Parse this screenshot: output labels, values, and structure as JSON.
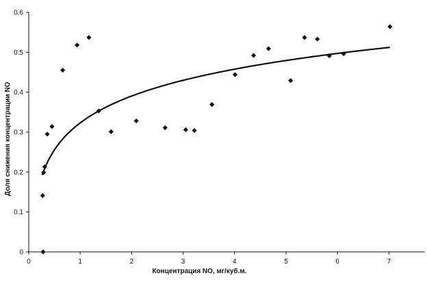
{
  "chart_data": {
    "type": "scatter",
    "title": "",
    "xlabel": "Концентрация NO, мг/куб.м.",
    "ylabel": "Доля снижения концентрации NO",
    "xlim": [
      0,
      7.7
    ],
    "ylim": [
      0,
      0.6
    ],
    "x_ticks": [
      "0",
      "1",
      "2",
      "3",
      "4",
      "5",
      "6",
      "7"
    ],
    "y_ticks": [
      "0",
      "0.1",
      "0.2",
      "0.3",
      "0.4",
      "0.5",
      "0.6"
    ],
    "grid": false,
    "legend": "none",
    "marker": "diamond",
    "marker_color": "#111111",
    "series": [
      {
        "x": [
          0.28,
          0.27,
          0.29,
          0.31,
          0.36,
          0.45,
          0.66,
          0.94,
          1.17,
          1.36,
          1.6,
          2.09,
          2.65,
          3.05,
          3.22,
          3.56,
          4.01,
          4.37,
          4.66,
          5.09,
          5.36,
          5.61,
          5.84,
          6.12,
          7.02
        ],
        "y": [
          0.0,
          0.141,
          0.199,
          0.213,
          0.295,
          0.314,
          0.455,
          0.518,
          0.537,
          0.353,
          0.301,
          0.328,
          0.311,
          0.306,
          0.304,
          0.369,
          0.444,
          0.492,
          0.509,
          0.429,
          0.537,
          0.533,
          0.491,
          0.496,
          0.564
        ]
      }
    ],
    "trendline": {
      "type": "logarithmic",
      "x_range": [
        0.26,
        7.02
      ],
      "y_at_1": 0.323,
      "y_at_7": 0.512
    }
  }
}
